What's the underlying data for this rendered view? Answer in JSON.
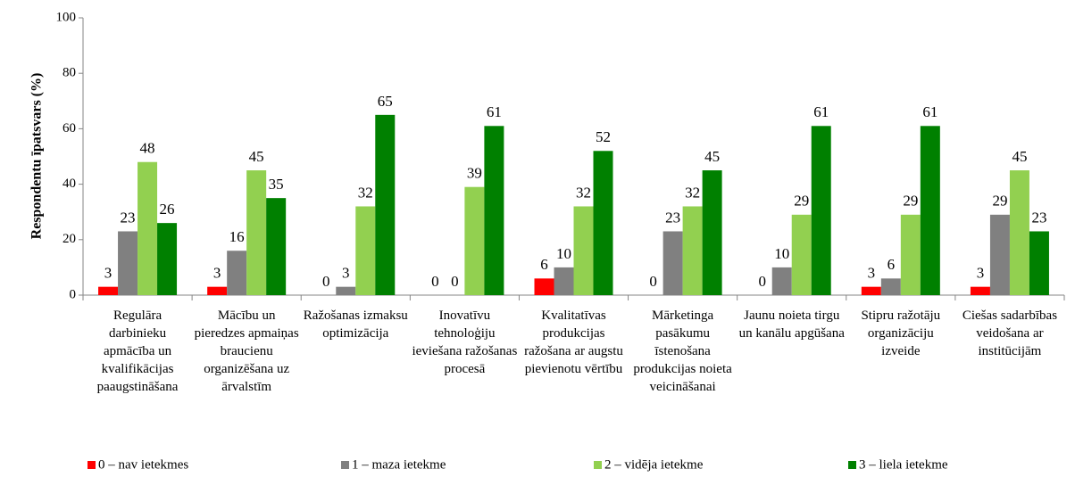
{
  "chart_data": {
    "type": "bar",
    "ylabel": "Respondentu īpatsvars (%)",
    "categories": [
      "Regulāra darbinieku apmācība un kvalifikācijas paaugstināšana",
      "Mācību un pieredzes apmaiņas braucienu organizēšana uz ārvalstīm",
      "Ražošanas izmaksu optimizācija",
      "Inovatīvu tehnoloģiju ieviešana ražošanas procesā",
      "Kvalitatīvas produkcijas ražošana ar augstu pievienotu vērtību",
      "Mārketinga pasākumu īstenošana produkcijas noieta veicināšanai",
      "Jaunu noieta tirgu un kanālu apgūšana",
      "Stipru ražotāju organizāciju izveide",
      "Ciešas sadarbības veidošana ar institūcijām"
    ],
    "series": [
      {
        "name": "0 – nav ietekmes",
        "color": "#ff0000",
        "values": [
          3,
          3,
          0,
          0,
          6,
          0,
          0,
          3,
          3
        ]
      },
      {
        "name": "1 – maza ietekme",
        "color": "#808080",
        "values": [
          23,
          16,
          3,
          0,
          10,
          23,
          10,
          6,
          29
        ]
      },
      {
        "name": "2 – vidēja ietekme",
        "color": "#92d050",
        "values": [
          48,
          45,
          32,
          39,
          32,
          32,
          29,
          29,
          45
        ]
      },
      {
        "name": "3 – liela ietekme",
        "color": "#008000",
        "values": [
          26,
          35,
          65,
          61,
          52,
          45,
          61,
          61,
          23
        ]
      }
    ],
    "ylim": [
      0,
      100
    ],
    "yticks": [
      0,
      20,
      40,
      60,
      80,
      100
    ],
    "grid": false,
    "legend": "bottom"
  }
}
